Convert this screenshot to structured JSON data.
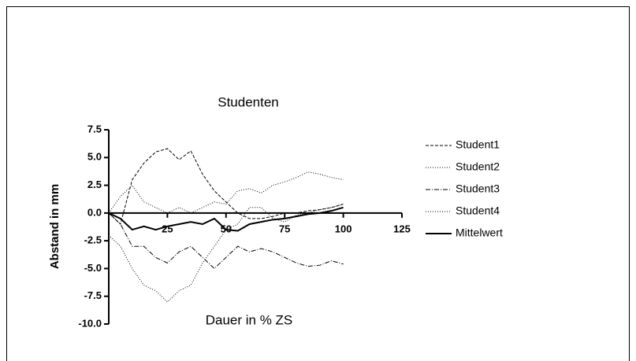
{
  "chart_data": {
    "type": "line",
    "title": "Studenten",
    "x_label": "Dauer in % ZS",
    "y_label": "Abstand in mm",
    "x": [
      0,
      5,
      10,
      15,
      20,
      25,
      30,
      35,
      40,
      45,
      50,
      55,
      60,
      65,
      70,
      75,
      80,
      85,
      90,
      95,
      100
    ],
    "series": [
      {
        "name": "Student1",
        "color": "#000000",
        "linestyle": "dashed",
        "values": [
          0,
          -1,
          3,
          4.5,
          5.5,
          5.8,
          4.8,
          5.6,
          3.5,
          2,
          1,
          0,
          -0.5,
          -0.5,
          -0.3,
          0,
          0,
          0.2,
          0.3,
          0.5,
          0.8
        ]
      },
      {
        "name": "Student2",
        "color": "#000000",
        "linestyle": "dotted",
        "values": [
          0,
          1.5,
          2.5,
          1,
          0.5,
          0,
          0.5,
          0,
          0.5,
          1,
          0.8,
          2,
          2.2,
          1.8,
          2.5,
          2.8,
          3.2,
          3.7,
          3.5,
          3.2,
          3
        ]
      },
      {
        "name": "Student3",
        "color": "#000000",
        "linestyle": "dashdot",
        "values": [
          0,
          -1,
          -3,
          -3,
          -4,
          -4.5,
          -3.5,
          -3,
          -4,
          -5,
          -4,
          -3,
          -3.5,
          -3.2,
          -3.5,
          -4,
          -4.5,
          -4.8,
          -4.7,
          -4.3,
          -4.6
        ]
      },
      {
        "name": "Student4",
        "color": "#000000",
        "linestyle": "dotted",
        "values": [
          -2,
          -3,
          -5,
          -6.5,
          -7,
          -8,
          -7,
          -6.5,
          -4.5,
          -3,
          -1.5,
          -1,
          0.5,
          0.5,
          -0.5,
          -0.8,
          -0.2,
          0,
          0.3,
          0.5,
          0.8
        ]
      },
      {
        "name": "Mittelwert",
        "color": "#000000",
        "linestyle": "solid",
        "values": [
          0,
          -0.5,
          -1.5,
          -1.2,
          -1.5,
          -1.2,
          -1,
          -0.8,
          -1,
          -0.5,
          -1.5,
          -1.6,
          -1,
          -0.8,
          -0.6,
          -0.5,
          -0.3,
          -0.1,
          0,
          0.2,
          0.5
        ]
      }
    ],
    "xlim": [
      0,
      125
    ],
    "xticks": [
      25,
      50,
      75,
      100,
      125
    ],
    "ylim": [
      -10,
      7.5
    ],
    "yticks": [
      {
        "value": -10,
        "label": "-10.0"
      },
      -7.5,
      {
        "value": -5,
        "label": "-5.0"
      },
      -2.5,
      {
        "value": 0,
        "label": "0.0"
      },
      2.5,
      {
        "value": 5,
        "label": "5.0"
      },
      7.5
    ],
    "legend": "right"
  }
}
